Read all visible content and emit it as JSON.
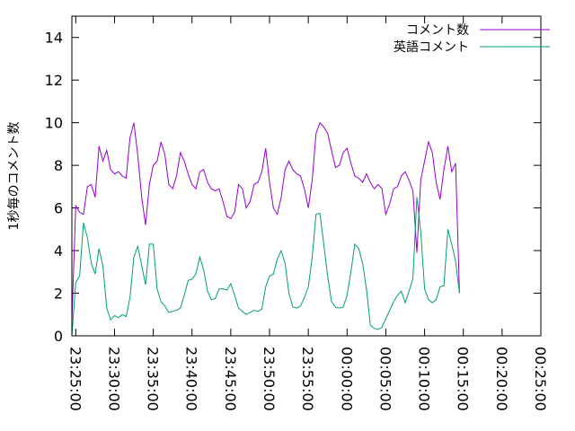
{
  "chart_data": {
    "type": "line",
    "ylabel": "1秒毎のコメント数",
    "xlabel": "",
    "ylim": [
      0,
      15
    ],
    "y_ticks": [
      "0",
      "2",
      "4",
      "6",
      "8",
      "10",
      "12",
      "14"
    ],
    "x_range": [
      "23:24:30",
      "00:25:00"
    ],
    "x_ticks": [
      "23:25:00",
      "23:30:00",
      "23:35:00",
      "23:40:00",
      "23:45:00",
      "23:50:00",
      "23:55:00",
      "00:00:00",
      "00:05:00",
      "00:10:00",
      "00:15:00",
      "00:20:00",
      "00:25:00"
    ],
    "x_label_rotation": "vertical",
    "legend_position": "top-right",
    "grid": false,
    "series": [
      {
        "name": "コメント数",
        "color": "#9400d3",
        "points": [
          [
            "23:24:30",
            0.7
          ],
          [
            "23:25:00",
            6.1
          ],
          [
            "23:25:30",
            5.8
          ],
          [
            "23:26:00",
            5.7
          ],
          [
            "23:26:30",
            7.0
          ],
          [
            "23:27:00",
            7.1
          ],
          [
            "23:27:30",
            6.5
          ],
          [
            "23:28:00",
            8.9
          ],
          [
            "23:28:30",
            8.2
          ],
          [
            "23:29:00",
            8.7
          ],
          [
            "23:29:30",
            7.8
          ],
          [
            "23:30:00",
            7.6
          ],
          [
            "23:30:30",
            7.7
          ],
          [
            "23:31:00",
            7.5
          ],
          [
            "23:31:30",
            7.4
          ],
          [
            "23:32:00",
            9.3
          ],
          [
            "23:32:30",
            10.0
          ],
          [
            "23:33:00",
            8.5
          ],
          [
            "23:33:30",
            6.5
          ],
          [
            "23:34:00",
            5.2
          ],
          [
            "23:34:30",
            7.1
          ],
          [
            "23:35:00",
            8.0
          ],
          [
            "23:35:30",
            8.2
          ],
          [
            "23:36:00",
            9.1
          ],
          [
            "23:36:30",
            8.5
          ],
          [
            "23:37:00",
            7.1
          ],
          [
            "23:37:30",
            6.9
          ],
          [
            "23:38:00",
            7.5
          ],
          [
            "23:38:30",
            8.6
          ],
          [
            "23:39:00",
            8.2
          ],
          [
            "23:39:30",
            7.6
          ],
          [
            "23:40:00",
            7.1
          ],
          [
            "23:40:30",
            6.9
          ],
          [
            "23:41:00",
            7.7
          ],
          [
            "23:41:30",
            7.8
          ],
          [
            "23:42:00",
            7.2
          ],
          [
            "23:42:30",
            6.9
          ],
          [
            "23:43:00",
            6.8
          ],
          [
            "23:43:30",
            6.9
          ],
          [
            "23:44:00",
            6.3
          ],
          [
            "23:44:30",
            5.6
          ],
          [
            "23:45:00",
            5.5
          ],
          [
            "23:45:30",
            5.8
          ],
          [
            "23:46:00",
            7.1
          ],
          [
            "23:46:30",
            6.9
          ],
          [
            "23:47:00",
            6.0
          ],
          [
            "23:47:30",
            6.3
          ],
          [
            "23:48:00",
            7.1
          ],
          [
            "23:48:30",
            7.2
          ],
          [
            "23:49:00",
            7.7
          ],
          [
            "23:49:30",
            8.8
          ],
          [
            "23:50:00",
            7.2
          ],
          [
            "23:50:30",
            6.0
          ],
          [
            "23:51:00",
            5.7
          ],
          [
            "23:51:30",
            6.5
          ],
          [
            "23:52:00",
            7.8
          ],
          [
            "23:52:30",
            8.2
          ],
          [
            "23:53:00",
            7.8
          ],
          [
            "23:53:30",
            7.6
          ],
          [
            "23:54:00",
            7.5
          ],
          [
            "23:54:30",
            6.9
          ],
          [
            "23:55:00",
            6.0
          ],
          [
            "23:55:30",
            7.3
          ],
          [
            "23:56:00",
            9.5
          ],
          [
            "23:56:30",
            10.0
          ],
          [
            "23:57:00",
            9.8
          ],
          [
            "23:57:30",
            9.5
          ],
          [
            "23:58:00",
            8.7
          ],
          [
            "23:58:30",
            7.9
          ],
          [
            "23:59:00",
            8.0
          ],
          [
            "23:59:30",
            8.6
          ],
          [
            "00:00:00",
            8.8
          ],
          [
            "00:00:30",
            8.1
          ],
          [
            "00:01:00",
            7.5
          ],
          [
            "00:01:30",
            7.4
          ],
          [
            "00:02:00",
            7.2
          ],
          [
            "00:02:30",
            7.6
          ],
          [
            "00:03:00",
            7.2
          ],
          [
            "00:03:30",
            6.9
          ],
          [
            "00:04:00",
            7.1
          ],
          [
            "00:04:30",
            6.9
          ],
          [
            "00:05:00",
            5.7
          ],
          [
            "00:05:30",
            6.2
          ],
          [
            "00:06:00",
            6.9
          ],
          [
            "00:06:30",
            7.0
          ],
          [
            "00:07:00",
            7.5
          ],
          [
            "00:07:30",
            7.7
          ],
          [
            "00:08:00",
            7.3
          ],
          [
            "00:08:30",
            6.8
          ],
          [
            "00:09:00",
            3.9
          ],
          [
            "00:09:30",
            7.3
          ],
          [
            "00:10:00",
            8.2
          ],
          [
            "00:10:30",
            9.1
          ],
          [
            "00:11:00",
            8.6
          ],
          [
            "00:11:30",
            7.2
          ],
          [
            "00:12:00",
            6.4
          ],
          [
            "00:12:30",
            7.8
          ],
          [
            "00:13:00",
            8.9
          ],
          [
            "00:13:30",
            7.7
          ],
          [
            "00:14:00",
            8.1
          ],
          [
            "00:14:30",
            2.0
          ]
        ]
      },
      {
        "name": "英語コメント",
        "color": "#009e73",
        "points": [
          [
            "23:24:30",
            0.0
          ],
          [
            "23:25:00",
            2.5
          ],
          [
            "23:25:30",
            2.8
          ],
          [
            "23:26:00",
            5.3
          ],
          [
            "23:26:30",
            4.6
          ],
          [
            "23:27:00",
            3.4
          ],
          [
            "23:27:30",
            2.9
          ],
          [
            "23:28:00",
            4.1
          ],
          [
            "23:28:30",
            3.3
          ],
          [
            "23:29:00",
            1.3
          ],
          [
            "23:29:30",
            0.75
          ],
          [
            "23:30:00",
            0.95
          ],
          [
            "23:30:30",
            0.85
          ],
          [
            "23:31:00",
            1.0
          ],
          [
            "23:31:30",
            0.9
          ],
          [
            "23:32:00",
            1.8
          ],
          [
            "23:32:30",
            3.7
          ],
          [
            "23:33:00",
            4.2
          ],
          [
            "23:33:30",
            3.3
          ],
          [
            "23:34:00",
            2.4
          ],
          [
            "23:34:30",
            4.3
          ],
          [
            "23:35:00",
            4.3
          ],
          [
            "23:35:30",
            2.2
          ],
          [
            "23:36:00",
            1.6
          ],
          [
            "23:36:30",
            1.4
          ],
          [
            "23:37:00",
            1.1
          ],
          [
            "23:37:30",
            1.15
          ],
          [
            "23:38:00",
            1.2
          ],
          [
            "23:38:30",
            1.3
          ],
          [
            "23:39:00",
            1.9
          ],
          [
            "23:39:30",
            2.6
          ],
          [
            "23:40:00",
            2.65
          ],
          [
            "23:40:30",
            2.9
          ],
          [
            "23:41:00",
            3.7
          ],
          [
            "23:41:30",
            3.1
          ],
          [
            "23:42:00",
            2.1
          ],
          [
            "23:42:30",
            1.7
          ],
          [
            "23:43:00",
            1.75
          ],
          [
            "23:43:30",
            2.2
          ],
          [
            "23:44:00",
            2.2
          ],
          [
            "23:44:30",
            2.15
          ],
          [
            "23:45:00",
            2.45
          ],
          [
            "23:45:30",
            1.9
          ],
          [
            "23:46:00",
            1.3
          ],
          [
            "23:46:30",
            1.15
          ],
          [
            "23:47:00",
            1.0
          ],
          [
            "23:47:30",
            1.1
          ],
          [
            "23:48:00",
            1.2
          ],
          [
            "23:48:30",
            1.15
          ],
          [
            "23:49:00",
            1.25
          ],
          [
            "23:49:30",
            2.3
          ],
          [
            "23:50:00",
            2.8
          ],
          [
            "23:50:30",
            2.9
          ],
          [
            "23:51:00",
            3.6
          ],
          [
            "23:51:30",
            4.0
          ],
          [
            "23:52:00",
            3.4
          ],
          [
            "23:52:30",
            2.0
          ],
          [
            "23:53:00",
            1.35
          ],
          [
            "23:53:30",
            1.3
          ],
          [
            "23:54:00",
            1.4
          ],
          [
            "23:54:30",
            1.8
          ],
          [
            "23:55:00",
            2.3
          ],
          [
            "23:55:30",
            3.7
          ],
          [
            "23:56:00",
            5.7
          ],
          [
            "23:56:30",
            5.75
          ],
          [
            "23:57:00",
            4.3
          ],
          [
            "23:57:30",
            2.8
          ],
          [
            "23:58:00",
            1.6
          ],
          [
            "23:58:30",
            1.35
          ],
          [
            "23:59:00",
            1.3
          ],
          [
            "23:59:30",
            1.35
          ],
          [
            "00:00:00",
            1.9
          ],
          [
            "00:00:30",
            3.0
          ],
          [
            "00:01:00",
            4.3
          ],
          [
            "00:01:30",
            4.1
          ],
          [
            "00:02:00",
            3.4
          ],
          [
            "00:02:30",
            2.2
          ],
          [
            "00:03:00",
            0.5
          ],
          [
            "00:03:30",
            0.35
          ],
          [
            "00:04:00",
            0.3
          ],
          [
            "00:04:30",
            0.4
          ],
          [
            "00:05:00",
            0.8
          ],
          [
            "00:05:30",
            1.2
          ],
          [
            "00:06:00",
            1.6
          ],
          [
            "00:06:30",
            1.9
          ],
          [
            "00:07:00",
            2.1
          ],
          [
            "00:07:30",
            1.55
          ],
          [
            "00:08:00",
            2.1
          ],
          [
            "00:08:30",
            2.7
          ],
          [
            "00:09:00",
            6.5
          ],
          [
            "00:09:30",
            4.9
          ],
          [
            "00:10:00",
            2.2
          ],
          [
            "00:10:30",
            1.7
          ],
          [
            "00:11:00",
            1.55
          ],
          [
            "00:11:30",
            1.7
          ],
          [
            "00:12:00",
            2.3
          ],
          [
            "00:12:30",
            2.35
          ],
          [
            "00:13:00",
            5.0
          ],
          [
            "00:13:30",
            4.3
          ],
          [
            "00:14:00",
            3.5
          ],
          [
            "00:14:30",
            2.0
          ]
        ]
      }
    ]
  }
}
